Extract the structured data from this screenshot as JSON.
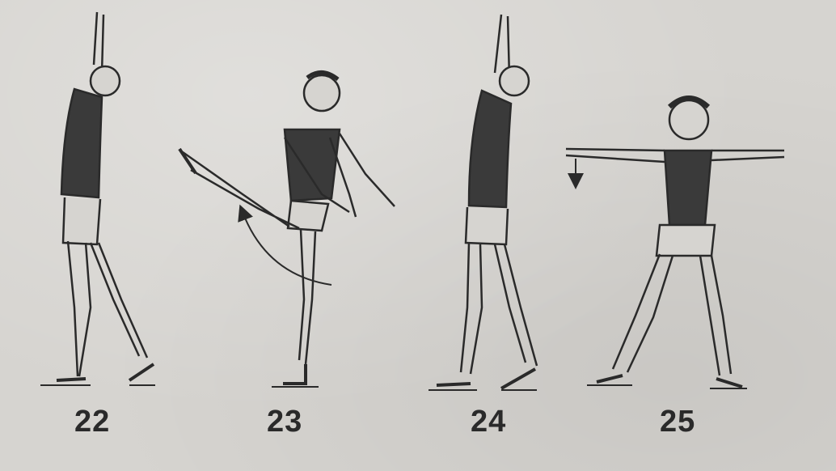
{
  "figures": [
    {
      "number": "22"
    },
    {
      "number": "23"
    },
    {
      "number": "24"
    },
    {
      "number": "25"
    }
  ],
  "colors": {
    "paper": "#d6d4d0",
    "ink": "#2a2a2a"
  }
}
